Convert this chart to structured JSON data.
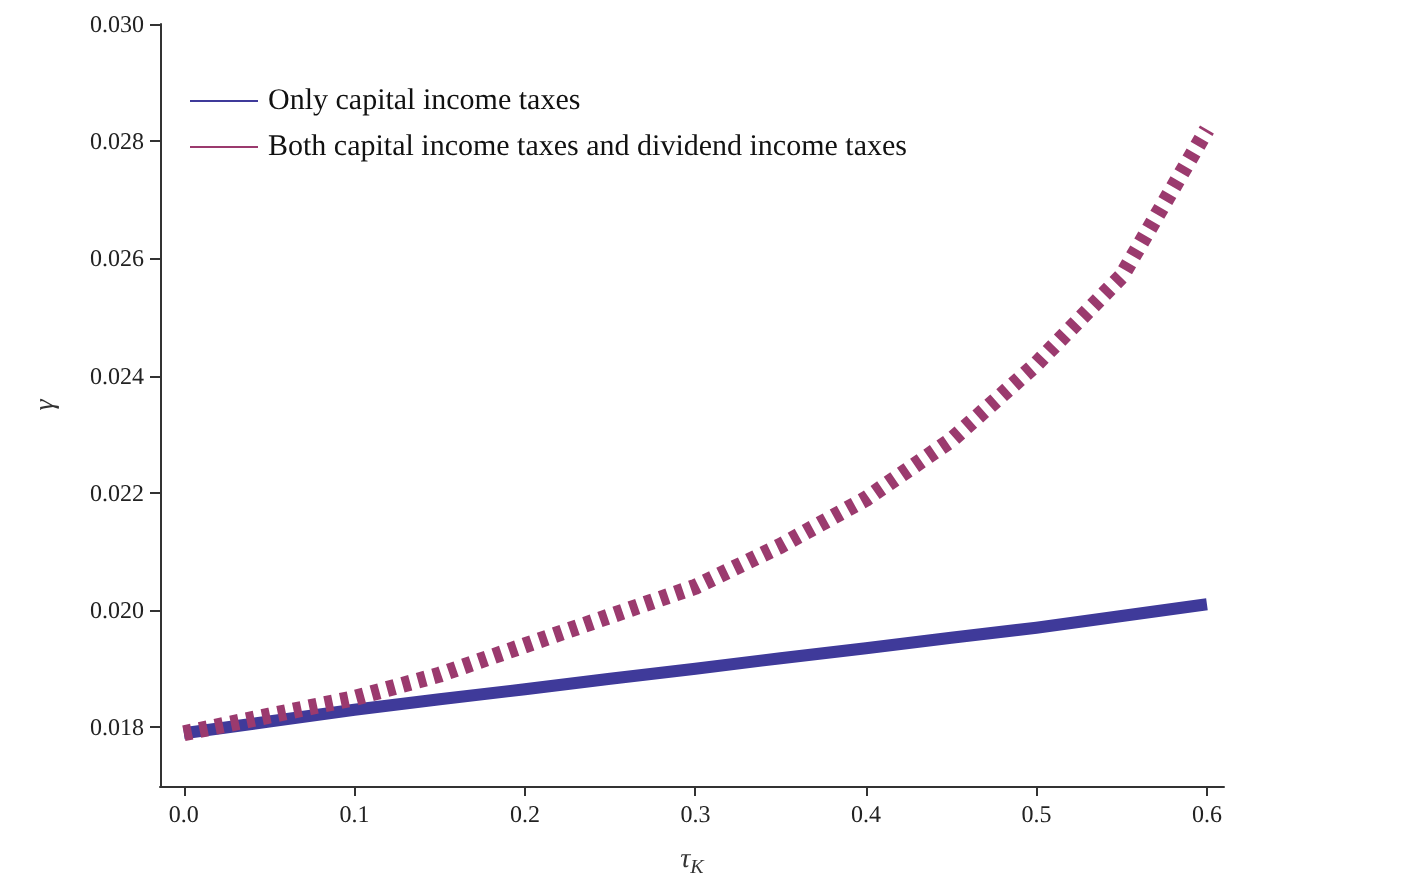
{
  "chart_data": {
    "type": "line",
    "xlabel": "τ$_{K}$",
    "ylabel": "γ",
    "xlim": [
      -0.014,
      0.61
    ],
    "xticks": [
      {
        "value": 0,
        "label": "0.0"
      },
      {
        "value": 0.1,
        "label": "0.1"
      },
      {
        "value": 0.2,
        "label": "0.2"
      },
      {
        "value": 0.3,
        "label": "0.3"
      },
      {
        "value": 0.4,
        "label": "0.4"
      },
      {
        "value": 0.5,
        "label": "0.5"
      },
      {
        "value": 0.6,
        "label": "0.6"
      }
    ],
    "ylim": [
      0.017,
      0.03
    ],
    "yticks": [
      {
        "value": 0.018,
        "label": "0.018"
      },
      {
        "value": 0.02,
        "label": "0.020"
      },
      {
        "value": 0.022,
        "label": "0.022"
      },
      {
        "value": 0.024,
        "label": "0.024"
      },
      {
        "value": 0.026,
        "label": "0.026"
      },
      {
        "value": 0.028,
        "label": "0.028"
      },
      {
        "value": 0.03,
        "label": "0.030"
      }
    ],
    "x": [
      0,
      0.05,
      0.1,
      0.15,
      0.2,
      0.25,
      0.3,
      0.35,
      0.4,
      0.45,
      0.5,
      0.55,
      0.6
    ],
    "series": [
      {
        "name": "Only capital income taxes",
        "color": "#3f3a9a",
        "line_style": "solid",
        "values": [
          0.0179,
          0.0181,
          0.0183,
          0.01848,
          0.01865,
          0.01883,
          0.019,
          0.01918,
          0.01935,
          0.01953,
          0.0197,
          0.0199,
          0.0201
        ]
      },
      {
        "name": "Both capital income taxes and dividend income taxes",
        "color": "#9b3a6e",
        "line_style": "dotted",
        "values": [
          0.0179,
          0.0182,
          0.0185,
          0.0189,
          0.0194,
          0.0199,
          0.0204,
          0.0211,
          0.0219,
          0.0229,
          0.0242,
          0.0257,
          0.0282
        ]
      }
    ],
    "legend": "top left",
    "grid": false,
    "marker": "none"
  }
}
